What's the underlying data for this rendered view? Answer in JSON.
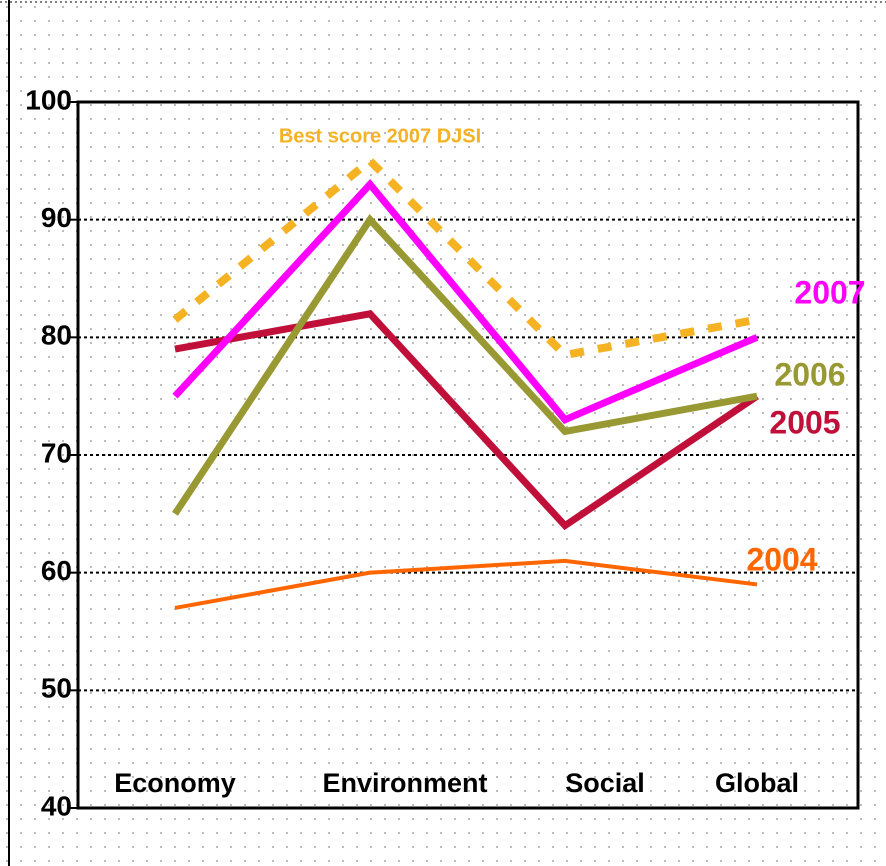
{
  "chart_data": {
    "type": "line",
    "categories": [
      "Economy",
      "Environment",
      "Social",
      "Global"
    ],
    "series": [
      {
        "name": "Best score 2007 DJSI",
        "color": "#f5b324",
        "dash": true,
        "values": [
          81.5,
          95,
          78.5,
          81.5
        ]
      },
      {
        "name": "2004",
        "color": "#ff6600",
        "values": [
          57,
          60,
          61,
          59
        ]
      },
      {
        "name": "2005",
        "color": "#c0103a",
        "values": [
          79,
          82,
          64,
          75
        ]
      },
      {
        "name": "2006",
        "color": "#999933",
        "values": [
          65,
          90,
          72,
          75
        ]
      },
      {
        "name": "2007",
        "color": "#ff00ff",
        "values": [
          75,
          93,
          73,
          80
        ]
      }
    ],
    "ylim": [
      40,
      100
    ],
    "yticks": [
      40,
      50,
      60,
      70,
      80,
      90,
      100
    ],
    "grid": true
  }
}
